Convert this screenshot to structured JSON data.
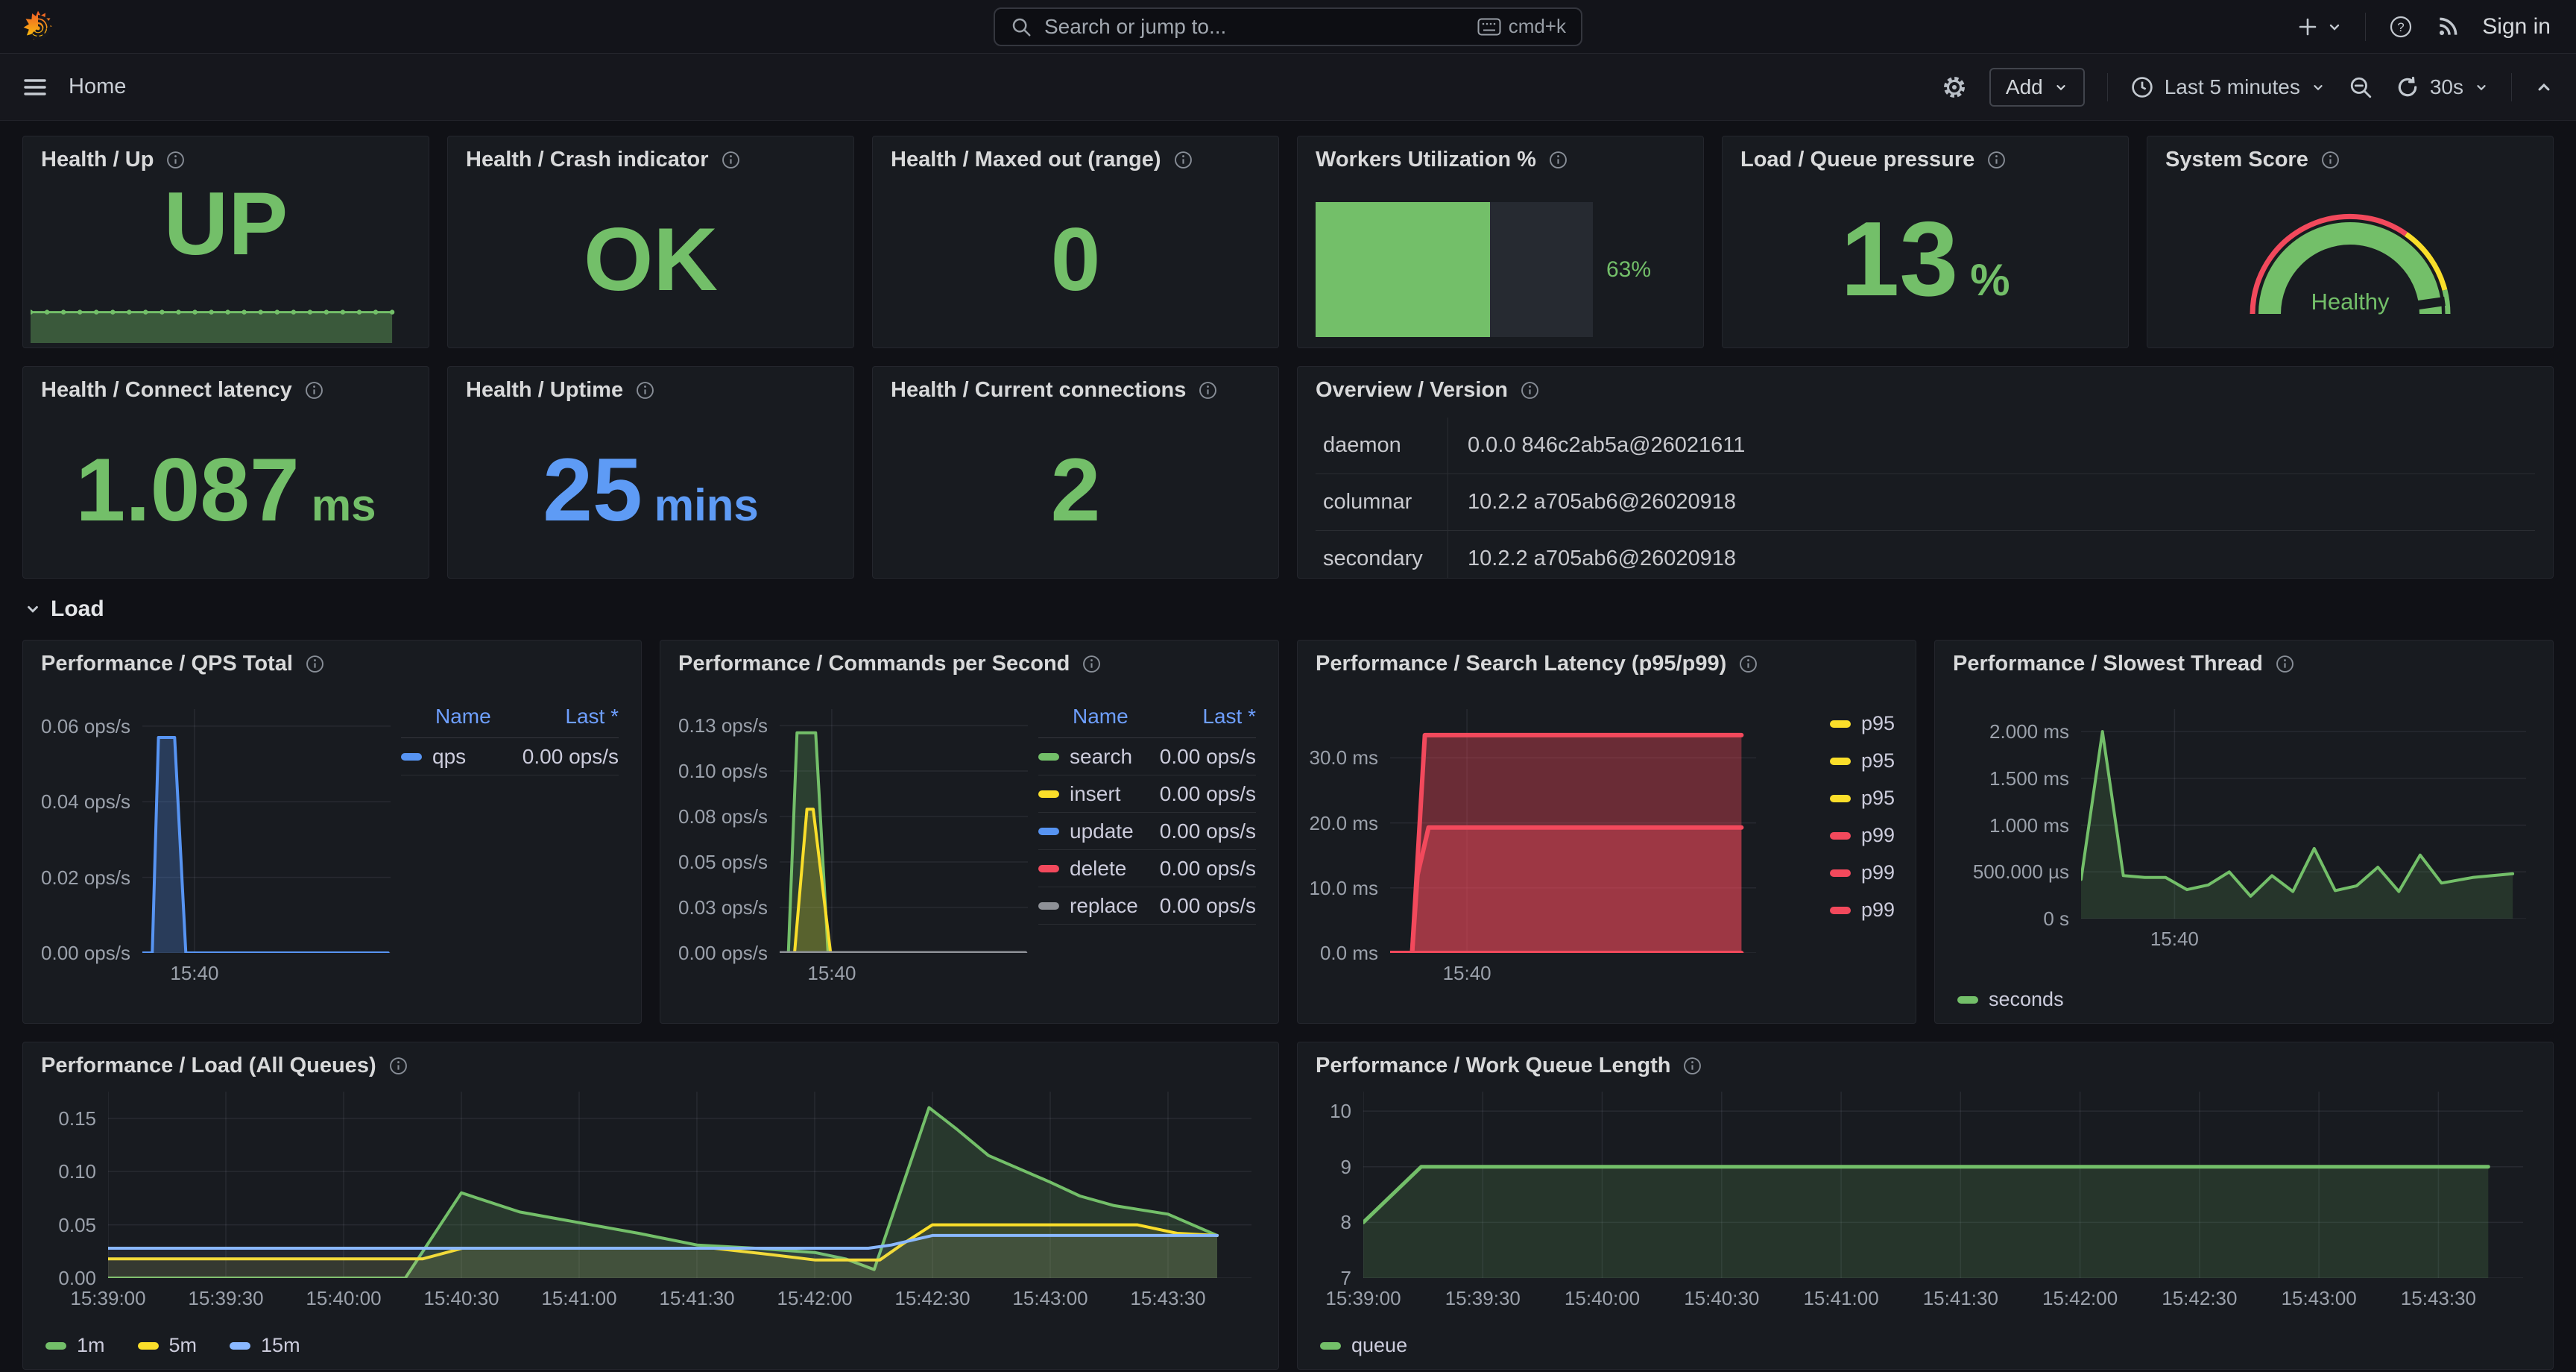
{
  "topbar": {
    "search_placeholder": "Search or jump to...",
    "shortcut": "cmd+k",
    "sign_in": "Sign in"
  },
  "toolbar": {
    "breadcrumb": "Home",
    "add_label": "Add",
    "time_range": "Last 5 minutes",
    "refresh_interval": "30s"
  },
  "section": {
    "load_label": "Load"
  },
  "colors": {
    "green": "#73bf69",
    "yellow": "#fade2a",
    "red": "#f2495c",
    "blue": "#5794f2",
    "light_blue": "#8ab8ff",
    "gray": "#8e9197",
    "legend_header_blue": "#6e9fff"
  },
  "panels": {
    "up": {
      "title": "Health / Up",
      "value": "UP"
    },
    "crash": {
      "title": "Health / Crash indicator",
      "value": "OK"
    },
    "maxed": {
      "title": "Health / Maxed out (range)",
      "value": "0"
    },
    "workers": {
      "title": "Workers Utilization %",
      "value": "63%",
      "percent": 63
    },
    "queue_pressure": {
      "title": "Load / Queue pressure",
      "value": "13",
      "unit": "%"
    },
    "system_score": {
      "title": "System Score",
      "value": "Healthy"
    },
    "connect_latency": {
      "title": "Health / Connect latency",
      "value": "1.087",
      "unit": "ms"
    },
    "uptime": {
      "title": "Health / Uptime",
      "value": "25",
      "unit": "mins"
    },
    "connections": {
      "title": "Health / Current connections",
      "value": "2"
    },
    "version": {
      "title": "Overview / Version",
      "rows": [
        {
          "name": "daemon",
          "value": "0.0.0 846c2ab5a@26021611"
        },
        {
          "name": "columnar",
          "value": "10.2.2 a705ab6@26020918"
        },
        {
          "name": "secondary",
          "value": "10.2.2 a705ab6@26020918"
        }
      ]
    },
    "qps": {
      "title": "Performance / QPS Total"
    },
    "commands": {
      "title": "Performance / Commands per Second"
    },
    "latency": {
      "title": "Performance / Search Latency (p95/p99)"
    },
    "slowest": {
      "title": "Performance / Slowest Thread"
    },
    "load": {
      "title": "Performance / Load (All Queues)"
    },
    "work_queue": {
      "title": "Performance / Work Queue Length"
    }
  },
  "chart_data": {
    "up_spark": {
      "type": "area",
      "ylim": [
        0,
        1.4
      ],
      "series": [
        {
          "name": "up",
          "color": "#73bf69",
          "width": 3,
          "fill": true,
          "fillOpacity": 0.38,
          "dots": true,
          "points": [
            [
              0,
              1
            ],
            [
              4.5,
              1
            ],
            [
              9,
              1
            ],
            [
              13.5,
              1
            ],
            [
              18,
              1
            ],
            [
              22.5,
              1
            ],
            [
              27,
              1
            ],
            [
              31.5,
              1
            ],
            [
              36,
              1
            ],
            [
              40.5,
              1
            ],
            [
              45,
              1
            ],
            [
              49.5,
              1
            ],
            [
              54,
              1
            ],
            [
              58.5,
              1
            ],
            [
              63,
              1
            ],
            [
              67.5,
              1
            ],
            [
              72,
              1
            ],
            [
              76.5,
              1
            ],
            [
              81,
              1
            ],
            [
              85.5,
              1
            ],
            [
              90,
              1
            ],
            [
              94.5,
              1
            ],
            [
              99,
              1
            ]
          ]
        }
      ]
    },
    "qps": {
      "type": "line",
      "title": "Performance / QPS Total",
      "ylim": [
        0,
        0.0645
      ],
      "yticks": [
        {
          "label": "0.06 ops/s",
          "v": 0.06
        },
        {
          "label": "0.04 ops/s",
          "v": 0.04
        },
        {
          "label": "0.02 ops/s",
          "v": 0.02
        },
        {
          "label": "0.00 ops/s",
          "v": 0
        }
      ],
      "xticks": [
        {
          "label": "15:40",
          "x": 21
        }
      ],
      "series": [
        {
          "name": "qps",
          "color": "#5794f2",
          "width": 4,
          "fill": true,
          "fillOpacity": 0.28,
          "points": [
            [
              0,
              0
            ],
            [
              4,
              0
            ],
            [
              6.5,
              0.057
            ],
            [
              13,
              0.057
            ],
            [
              17.5,
              0
            ],
            [
              99,
              0
            ]
          ]
        }
      ],
      "legend": {
        "type": "table",
        "headers": [
          "Name",
          "Last *"
        ],
        "rows": [
          {
            "name": "qps",
            "color": "#5794f2",
            "value": "0.00 ops/s"
          }
        ]
      }
    },
    "commands": {
      "type": "line",
      "title": "Performance / Commands per Second",
      "ylim": [
        0,
        0.134
      ],
      "yticks": [
        {
          "label": "0.13 ops/s",
          "v": 0.125
        },
        {
          "label": "0.10 ops/s",
          "v": 0.1
        },
        {
          "label": "0.08 ops/s",
          "v": 0.075
        },
        {
          "label": "0.05 ops/s",
          "v": 0.05
        },
        {
          "label": "0.03 ops/s",
          "v": 0.025
        },
        {
          "label": "0.00 ops/s",
          "v": 0
        }
      ],
      "xticks": [
        {
          "label": "15:40",
          "x": 21
        }
      ],
      "series": [
        {
          "name": "search",
          "color": "#73bf69",
          "width": 4,
          "fill": true,
          "fillOpacity": 0.22,
          "points": [
            [
              0,
              0
            ],
            [
              3.5,
              0
            ],
            [
              7,
              0.121
            ],
            [
              14.5,
              0.121
            ],
            [
              19.5,
              0
            ],
            [
              99,
              0
            ]
          ]
        },
        {
          "name": "insert",
          "color": "#fade2a",
          "width": 4,
          "fill": true,
          "fillOpacity": 0.22,
          "points": [
            [
              0,
              0
            ],
            [
              6,
              0
            ],
            [
              11,
              0.079
            ],
            [
              13.5,
              0.079
            ],
            [
              20.5,
              0
            ],
            [
              99,
              0
            ]
          ]
        },
        {
          "name": "update",
          "color": "#5794f2",
          "width": 4,
          "points": [
            [
              0,
              0
            ],
            [
              99,
              0
            ]
          ]
        },
        {
          "name": "delete",
          "color": "#f2495c",
          "width": 4,
          "points": [
            [
              0,
              0
            ],
            [
              99,
              0
            ]
          ]
        },
        {
          "name": "replace",
          "color": "#8e9197",
          "width": 5,
          "points": [
            [
              0,
              0
            ],
            [
              99,
              0
            ]
          ]
        }
      ],
      "legend": {
        "type": "table",
        "headers": [
          "Name",
          "Last *"
        ],
        "rows": [
          {
            "name": "search",
            "color": "#73bf69",
            "value": "0.00 ops/s"
          },
          {
            "name": "insert",
            "color": "#fade2a",
            "value": "0.00 ops/s"
          },
          {
            "name": "update",
            "color": "#5794f2",
            "value": "0.00 ops/s"
          },
          {
            "name": "delete",
            "color": "#f2495c",
            "value": "0.00 ops/s"
          },
          {
            "name": "replace",
            "color": "#8e9197",
            "value": "0.00 ops/s"
          }
        ]
      }
    },
    "latency": {
      "type": "line",
      "title": "Performance / Search Latency (p95/p99)",
      "ylim": [
        0,
        37.5
      ],
      "yticks": [
        {
          "label": "30.0 ms",
          "v": 30
        },
        {
          "label": "20.0 ms",
          "v": 20
        },
        {
          "label": "10.0 ms",
          "v": 10
        },
        {
          "label": "0.0 ms",
          "v": 0
        }
      ],
      "xticks": [
        {
          "label": "15:40",
          "x": 21
        }
      ],
      "series": [
        {
          "name": "p99",
          "color": "#f2495c",
          "width": 6,
          "fill": true,
          "fillOpacity": 0.38,
          "points": [
            [
              0,
              0
            ],
            [
              6,
              0
            ],
            [
              9.5,
              33.5
            ],
            [
              96,
              33.5
            ]
          ]
        },
        {
          "name": "p99",
          "color": "#f2495c",
          "width": 6,
          "fill": true,
          "fillOpacity": 0.38,
          "points": [
            [
              0,
              0
            ],
            [
              6,
              0
            ],
            [
              7.5,
              12
            ],
            [
              10.5,
              19.3
            ],
            [
              96,
              19.3
            ]
          ]
        },
        {
          "name": "p99",
          "color": "#f2495c",
          "width": 6,
          "points": [
            [
              0,
              0
            ],
            [
              96,
              0
            ]
          ]
        }
      ],
      "legend": {
        "type": "list",
        "items": [
          {
            "label": "p95",
            "color": "#fade2a"
          },
          {
            "label": "p95",
            "color": "#fade2a"
          },
          {
            "label": "p95",
            "color": "#fade2a"
          },
          {
            "label": "p99",
            "color": "#f2495c"
          },
          {
            "label": "p99",
            "color": "#f2495c"
          },
          {
            "label": "p99",
            "color": "#f2495c"
          }
        ]
      }
    },
    "slowest": {
      "type": "line",
      "title": "Performance / Slowest Thread",
      "ylim": [
        0,
        2.24
      ],
      "yticks": [
        {
          "label": "2.000 ms",
          "v": 2
        },
        {
          "label": "1.500 ms",
          "v": 1.5
        },
        {
          "label": "1.000 ms",
          "v": 1
        },
        {
          "label": "500.000 µs",
          "v": 0.5
        },
        {
          "label": "0 s",
          "v": 0
        }
      ],
      "xticks": [
        {
          "label": "15:40",
          "x": 21
        }
      ],
      "series": [
        {
          "name": "seconds",
          "color": "#73bf69",
          "width": 4,
          "fill": true,
          "fillOpacity": 0.16,
          "points": [
            [
              0,
              0.42
            ],
            [
              4.8,
              2.0
            ],
            [
              9.5,
              0.46
            ],
            [
              14.3,
              0.44
            ],
            [
              19,
              0.44
            ],
            [
              23.8,
              0.31
            ],
            [
              28.6,
              0.36
            ],
            [
              33.3,
              0.5
            ],
            [
              38.1,
              0.24
            ],
            [
              42.9,
              0.46
            ],
            [
              47.6,
              0.29
            ],
            [
              52.4,
              0.75
            ],
            [
              57.1,
              0.3
            ],
            [
              61.9,
              0.35
            ],
            [
              66.7,
              0.55
            ],
            [
              71.4,
              0.29
            ],
            [
              76.2,
              0.68
            ],
            [
              81,
              0.38
            ],
            [
              88,
              0.44
            ],
            [
              97,
              0.48
            ]
          ]
        }
      ],
      "legend": {
        "type": "row",
        "items": [
          {
            "label": "seconds",
            "color": "#73bf69"
          }
        ]
      }
    },
    "load": {
      "type": "line",
      "title": "Performance / Load (All Queues)",
      "ylim": [
        0,
        0.175
      ],
      "yticks": [
        {
          "label": "0.15",
          "v": 0.15
        },
        {
          "label": "0.10",
          "v": 0.1
        },
        {
          "label": "0.05",
          "v": 0.05
        },
        {
          "label": "0.00",
          "v": 0
        }
      ],
      "xticks": [
        {
          "label": "15:39:00",
          "x": 0
        },
        {
          "label": "15:39:30",
          "x": 10.3
        },
        {
          "label": "15:40:00",
          "x": 20.6
        },
        {
          "label": "15:40:30",
          "x": 30.9
        },
        {
          "label": "15:41:00",
          "x": 41.2
        },
        {
          "label": "15:41:30",
          "x": 51.5
        },
        {
          "label": "15:42:00",
          "x": 61.8
        },
        {
          "label": "15:42:30",
          "x": 72.1
        },
        {
          "label": "15:43:00",
          "x": 82.4
        },
        {
          "label": "15:43:30",
          "x": 92.7
        }
      ],
      "series": [
        {
          "name": "1m",
          "color": "#73bf69",
          "width": 4,
          "fill": true,
          "fillOpacity": 0.18,
          "points": [
            [
              0,
              0
            ],
            [
              26,
              0
            ],
            [
              30.9,
              0.08
            ],
            [
              36,
              0.062
            ],
            [
              41.2,
              0.052
            ],
            [
              46.4,
              0.042
            ],
            [
              51.5,
              0.031
            ],
            [
              56.6,
              0.028
            ],
            [
              61.8,
              0.024
            ],
            [
              64.5,
              0.018
            ],
            [
              67,
              0.008
            ],
            [
              71.8,
              0.16
            ],
            [
              74.2,
              0.14
            ],
            [
              77,
              0.115
            ],
            [
              82.4,
              0.09
            ],
            [
              85,
              0.077
            ],
            [
              88,
              0.068
            ],
            [
              92.7,
              0.06
            ],
            [
              97,
              0.04
            ]
          ]
        },
        {
          "name": "5m",
          "color": "#fade2a",
          "width": 4,
          "fill": true,
          "fillOpacity": 0.1,
          "points": [
            [
              0,
              0.018
            ],
            [
              27.5,
              0.018
            ],
            [
              31,
              0.028
            ],
            [
              53,
              0.028
            ],
            [
              58,
              0.022
            ],
            [
              61.8,
              0.017
            ],
            [
              67.5,
              0.017
            ],
            [
              69.5,
              0.032
            ],
            [
              72.1,
              0.05
            ],
            [
              90,
              0.05
            ],
            [
              93.5,
              0.042
            ],
            [
              97,
              0.04
            ]
          ]
        },
        {
          "name": "15m",
          "color": "#8ab8ff",
          "width": 4,
          "fill": true,
          "fillOpacity": 0.08,
          "points": [
            [
              0,
              0.028
            ],
            [
              66.5,
              0.028
            ],
            [
              68.5,
              0.031
            ],
            [
              72.1,
              0.04
            ],
            [
              97,
              0.04
            ]
          ]
        }
      ],
      "legend": {
        "type": "row",
        "items": [
          {
            "label": "1m",
            "color": "#73bf69"
          },
          {
            "label": "5m",
            "color": "#fade2a"
          },
          {
            "label": "15m",
            "color": "#8ab8ff"
          }
        ]
      }
    },
    "work_queue": {
      "type": "line",
      "title": "Performance / Work Queue Length",
      "ylim": [
        7,
        10.35
      ],
      "yticks": [
        {
          "label": "10",
          "v": 10
        },
        {
          "label": "9",
          "v": 9
        },
        {
          "label": "8",
          "v": 8
        },
        {
          "label": "7",
          "v": 7
        }
      ],
      "xticks": [
        {
          "label": "15:39:00",
          "x": 0
        },
        {
          "label": "15:39:30",
          "x": 10.3
        },
        {
          "label": "15:40:00",
          "x": 20.6
        },
        {
          "label": "15:40:30",
          "x": 30.9
        },
        {
          "label": "15:41:00",
          "x": 41.2
        },
        {
          "label": "15:41:30",
          "x": 51.5
        },
        {
          "label": "15:42:00",
          "x": 61.8
        },
        {
          "label": "15:42:30",
          "x": 72.1
        },
        {
          "label": "15:43:00",
          "x": 82.4
        },
        {
          "label": "15:43:30",
          "x": 92.7
        }
      ],
      "series": [
        {
          "name": "queue",
          "color": "#73bf69",
          "width": 5,
          "fill": true,
          "fillOpacity": 0.16,
          "points": [
            [
              0,
              8
            ],
            [
              5,
              9
            ],
            [
              97,
              9
            ]
          ]
        }
      ],
      "legend": {
        "type": "row",
        "items": [
          {
            "label": "queue",
            "color": "#73bf69"
          }
        ]
      }
    }
  }
}
